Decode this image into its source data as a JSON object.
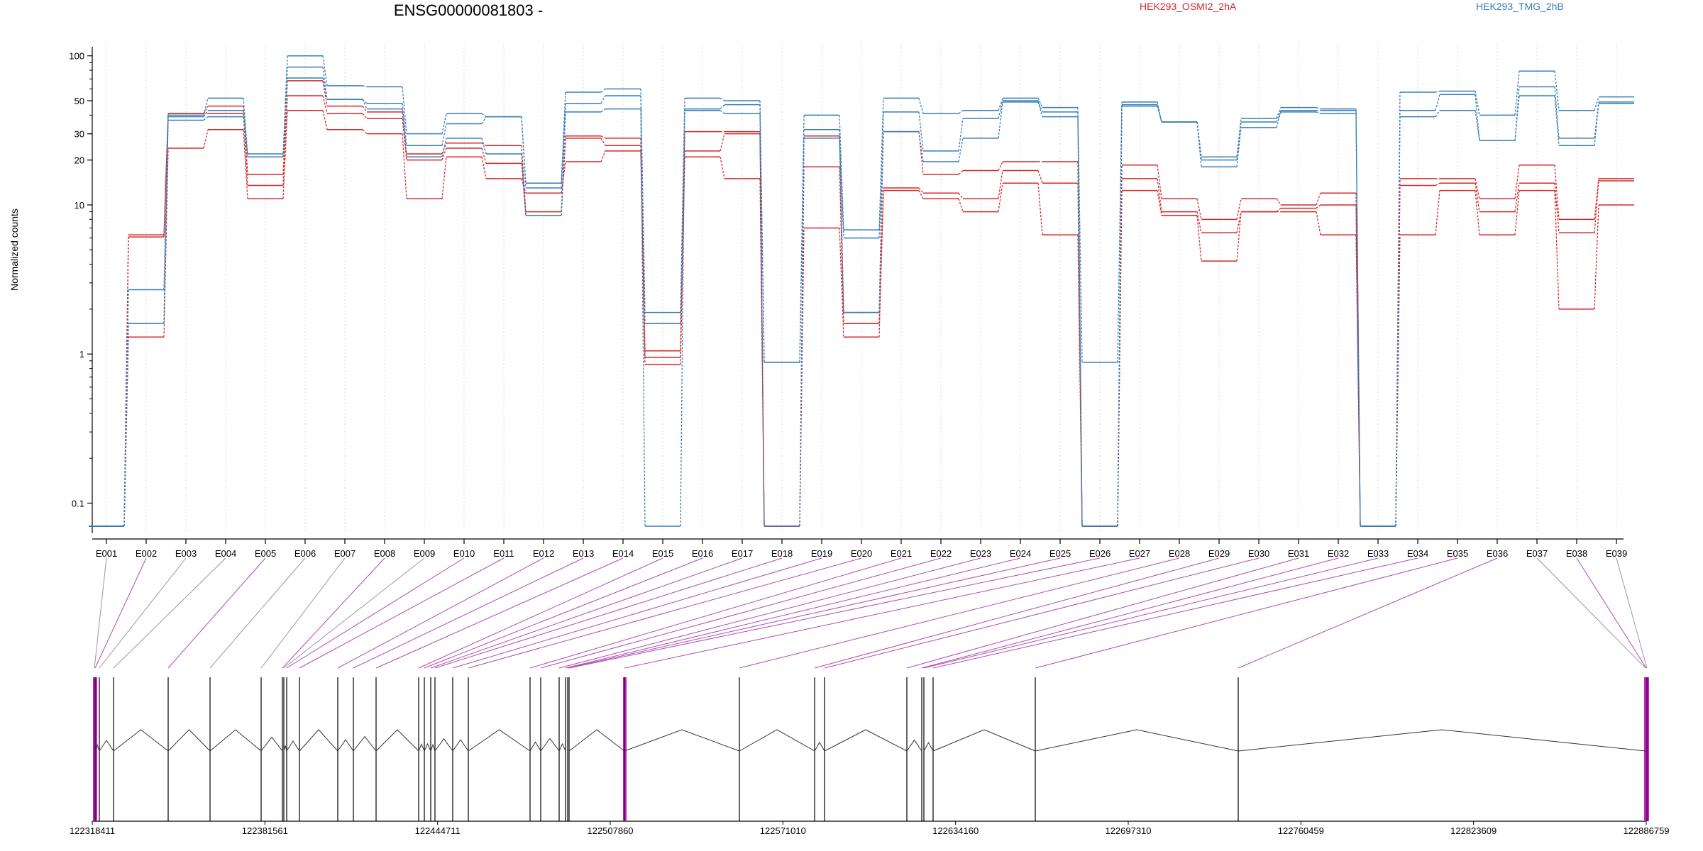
{
  "chart_data": {
    "type": "line",
    "title": "ENSG00000081803 -",
    "ylabel": "Normalized counts",
    "yscale": "log",
    "ylim": [
      0.07,
      110
    ],
    "yticks": [
      0.1,
      1,
      10,
      20,
      30,
      50,
      100
    ],
    "grid": "vertical dotted lines at each exon",
    "legend_position": "top",
    "colors": {
      "HEK293_OSMI2_2hA": "#d62728",
      "HEK293_TMG_2hB": "#377eb8",
      "connector_grey": "#999999",
      "connector_magenta": "#b04ab0"
    },
    "categories": [
      "E001",
      "E002",
      "E003",
      "E004",
      "E005",
      "E006",
      "E007",
      "E008",
      "E009",
      "E010",
      "E011",
      "E012",
      "E013",
      "E014",
      "E015",
      "E016",
      "E017",
      "E018",
      "E019",
      "E020",
      "E021",
      "E022",
      "E023",
      "E024",
      "E025",
      "E026",
      "E027",
      "E028",
      "E029",
      "E030",
      "E031",
      "E032",
      "E033",
      "E034",
      "E035",
      "E036",
      "E037",
      "E038",
      "E039"
    ],
    "series": [
      {
        "name": "HEK293_OSMI2_2hA",
        "values": [
          0.07,
          6.3,
          41,
          46,
          16,
          68,
          46,
          42,
          22,
          26,
          25,
          9,
          29,
          28,
          1.05,
          31,
          31,
          0.07,
          29,
          1.9,
          31,
          16,
          17,
          19.5,
          19.5,
          0.07,
          18.5,
          11,
          8,
          11,
          10,
          12,
          0.07,
          15,
          15,
          11,
          18.5,
          8,
          15
        ]
      },
      {
        "name": "HEK293_OSMI2_2hA",
        "values": [
          0.07,
          6.1,
          41,
          41,
          13.5,
          54,
          41,
          38,
          20,
          24,
          19,
          8.5,
          28,
          25,
          0.95,
          23,
          30,
          0.07,
          18,
          1.6,
          13,
          12,
          11,
          17,
          14,
          0.07,
          15,
          9,
          6.5,
          9,
          9.5,
          10,
          0.07,
          13.5,
          14,
          9,
          14,
          6.5,
          14.5
        ]
      },
      {
        "name": "HEK293_OSMI2_2hA",
        "values": [
          0.07,
          1.3,
          24,
          32,
          11,
          43,
          32,
          30,
          11,
          21,
          15,
          12,
          19.5,
          23,
          0.85,
          21,
          15,
          0.07,
          7,
          1.3,
          12.5,
          11,
          9,
          14,
          6.3,
          0.07,
          12.5,
          8.5,
          4.2,
          9,
          9,
          6.3,
          0.07,
          6.3,
          12.5,
          6.3,
          12.5,
          2,
          10
        ]
      },
      {
        "name": "HEK293_TMG_2hB",
        "values": [
          0.07,
          2.7,
          40,
          52,
          22,
          100,
          63,
          62,
          30,
          41,
          39,
          14,
          57,
          60,
          1.9,
          52,
          50,
          0.88,
          40,
          6.8,
          52,
          41,
          43,
          52,
          45,
          0.88,
          49,
          36,
          21,
          38,
          45,
          44,
          0.07,
          57,
          58,
          40,
          79,
          43,
          53
        ]
      },
      {
        "name": "HEK293_TMG_2hB",
        "values": [
          0.07,
          1.6,
          39,
          43,
          21,
          84,
          51,
          48,
          25,
          35,
          39,
          13,
          48,
          54,
          1.6,
          44,
          47,
          0.88,
          32,
          1.9,
          42,
          23,
          38,
          50,
          42,
          0.07,
          47,
          36,
          20,
          36,
          43,
          43,
          0.07,
          43,
          55,
          27,
          62,
          28,
          49
        ]
      },
      {
        "name": "HEK293_TMG_2hB",
        "values": [
          0.07,
          1.6,
          37,
          39,
          21,
          71,
          51,
          44,
          21,
          28,
          22,
          8.5,
          42,
          44,
          0.07,
          43,
          41,
          0.07,
          28,
          6.0,
          31,
          19.5,
          28,
          49,
          39,
          0.07,
          46,
          36,
          18,
          33,
          42,
          41,
          0.07,
          39,
          43,
          27,
          54,
          25,
          48
        ]
      }
    ],
    "genomic_axis": {
      "tick_labels": [
        "122318411",
        "122381561",
        "122444711",
        "122507860",
        "122571010",
        "122634160",
        "122697310",
        "122760459",
        "122823609",
        "122886759"
      ]
    }
  }
}
